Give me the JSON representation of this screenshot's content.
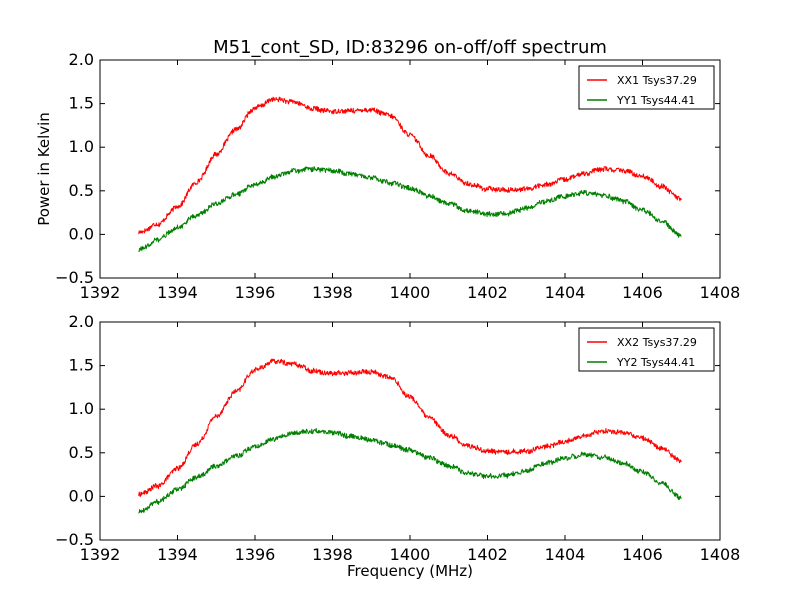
{
  "figure": {
    "title": "M51_cont_SD, ID:83296 on-off/off spectrum",
    "xlabel": "Frequency (MHz)",
    "ylabel": "Power in Kelvin"
  },
  "chart_data": [
    {
      "type": "line",
      "title": "M51_cont_SD, ID:83296 on-off/off spectrum",
      "xlabel": "",
      "ylabel": "Power in Kelvin",
      "xlim": [
        1392,
        1408
      ],
      "ylim": [
        -0.5,
        2.0
      ],
      "xticks": [
        1392,
        1394,
        1396,
        1398,
        1400,
        1402,
        1404,
        1406,
        1408
      ],
      "yticks": [
        -0.5,
        0.0,
        0.5,
        1.0,
        1.5,
        2.0
      ],
      "xtick_labels": [
        "1392",
        "1394",
        "1396",
        "1398",
        "1400",
        "1402",
        "1404",
        "1406",
        "1408"
      ],
      "ytick_labels": [
        "−0.5",
        "0.0",
        "0.5",
        "1.0",
        "1.5",
        "2.0"
      ],
      "grid": false,
      "legend_position": "top-right",
      "series": [
        {
          "name": "XX1 Tsys37.29",
          "color": "#ff0000",
          "x": [
            1393.0,
            1393.5,
            1394.0,
            1394.5,
            1395.0,
            1395.5,
            1396.0,
            1396.5,
            1397.0,
            1397.5,
            1398.0,
            1398.5,
            1399.0,
            1399.5,
            1400.0,
            1400.5,
            1401.0,
            1401.5,
            1402.0,
            1402.5,
            1403.0,
            1403.5,
            1404.0,
            1404.5,
            1405.0,
            1405.5,
            1406.0,
            1406.5,
            1407.0
          ],
          "values": [
            0.02,
            0.12,
            0.32,
            0.6,
            0.92,
            1.2,
            1.45,
            1.55,
            1.52,
            1.44,
            1.41,
            1.42,
            1.43,
            1.36,
            1.14,
            0.9,
            0.7,
            0.58,
            0.52,
            0.51,
            0.52,
            0.57,
            0.63,
            0.7,
            0.75,
            0.73,
            0.67,
            0.55,
            0.4
          ]
        },
        {
          "name": "YY1 Tsys44.41",
          "color": "#008000",
          "x": [
            1393.0,
            1393.5,
            1394.0,
            1394.5,
            1395.0,
            1395.5,
            1396.0,
            1396.5,
            1397.0,
            1397.5,
            1398.0,
            1398.5,
            1399.0,
            1399.5,
            1400.0,
            1400.5,
            1401.0,
            1401.5,
            1402.0,
            1402.5,
            1403.0,
            1403.5,
            1404.0,
            1404.5,
            1405.0,
            1405.5,
            1406.0,
            1406.5,
            1407.0
          ],
          "values": [
            -0.18,
            -0.06,
            0.08,
            0.22,
            0.35,
            0.46,
            0.57,
            0.66,
            0.73,
            0.75,
            0.73,
            0.69,
            0.65,
            0.59,
            0.53,
            0.44,
            0.35,
            0.27,
            0.23,
            0.24,
            0.3,
            0.38,
            0.44,
            0.48,
            0.45,
            0.38,
            0.28,
            0.15,
            -0.02
          ]
        }
      ]
    },
    {
      "type": "line",
      "title": "",
      "xlabel": "Frequency (MHz)",
      "ylabel": "",
      "xlim": [
        1392,
        1408
      ],
      "ylim": [
        -0.5,
        2.0
      ],
      "xticks": [
        1392,
        1394,
        1396,
        1398,
        1400,
        1402,
        1404,
        1406,
        1408
      ],
      "yticks": [
        -0.5,
        0.0,
        0.5,
        1.0,
        1.5,
        2.0
      ],
      "xtick_labels": [
        "1392",
        "1394",
        "1396",
        "1398",
        "1400",
        "1402",
        "1404",
        "1406",
        "1408"
      ],
      "ytick_labels": [
        "−0.5",
        "0.0",
        "0.5",
        "1.0",
        "1.5",
        "2.0"
      ],
      "grid": false,
      "legend_position": "top-right",
      "series": [
        {
          "name": "XX2 Tsys37.29",
          "color": "#ff0000",
          "x": [
            1393.0,
            1393.5,
            1394.0,
            1394.5,
            1395.0,
            1395.5,
            1396.0,
            1396.5,
            1397.0,
            1397.5,
            1398.0,
            1398.5,
            1399.0,
            1399.5,
            1400.0,
            1400.5,
            1401.0,
            1401.5,
            1402.0,
            1402.5,
            1403.0,
            1403.5,
            1404.0,
            1404.5,
            1405.0,
            1405.5,
            1406.0,
            1406.5,
            1407.0
          ],
          "values": [
            0.02,
            0.12,
            0.32,
            0.6,
            0.92,
            1.2,
            1.45,
            1.55,
            1.52,
            1.44,
            1.41,
            1.42,
            1.43,
            1.36,
            1.14,
            0.9,
            0.7,
            0.58,
            0.52,
            0.51,
            0.52,
            0.57,
            0.63,
            0.7,
            0.75,
            0.73,
            0.67,
            0.55,
            0.4
          ]
        },
        {
          "name": "YY2 Tsys44.41",
          "color": "#008000",
          "x": [
            1393.0,
            1393.5,
            1394.0,
            1394.5,
            1395.0,
            1395.5,
            1396.0,
            1396.5,
            1397.0,
            1397.5,
            1398.0,
            1398.5,
            1399.0,
            1399.5,
            1400.0,
            1400.5,
            1401.0,
            1401.5,
            1402.0,
            1402.5,
            1403.0,
            1403.5,
            1404.0,
            1404.5,
            1405.0,
            1405.5,
            1406.0,
            1406.5,
            1407.0
          ],
          "values": [
            -0.18,
            -0.06,
            0.08,
            0.22,
            0.35,
            0.46,
            0.57,
            0.66,
            0.73,
            0.75,
            0.73,
            0.69,
            0.65,
            0.59,
            0.53,
            0.44,
            0.35,
            0.27,
            0.23,
            0.24,
            0.3,
            0.38,
            0.44,
            0.48,
            0.45,
            0.38,
            0.28,
            0.15,
            -0.02
          ]
        }
      ]
    }
  ]
}
